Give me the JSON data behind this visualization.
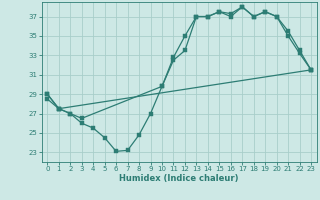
{
  "xlabel": "Humidex (Indice chaleur)",
  "background_color": "#cde8e5",
  "grid_color": "#a8ceca",
  "line_color": "#2d7d74",
  "xlim": [
    -0.5,
    23.5
  ],
  "ylim": [
    22.0,
    38.5
  ],
  "yticks": [
    23,
    25,
    27,
    29,
    31,
    33,
    35,
    37
  ],
  "xticks": [
    0,
    1,
    2,
    3,
    4,
    5,
    6,
    7,
    8,
    9,
    10,
    11,
    12,
    13,
    14,
    15,
    16,
    17,
    18,
    19,
    20,
    21,
    22,
    23
  ],
  "line1_x": [
    0,
    1,
    2,
    3,
    4,
    5,
    6,
    7,
    8,
    9,
    10,
    11,
    12,
    13,
    14,
    15,
    16,
    17,
    18,
    19,
    20,
    21,
    22,
    23
  ],
  "line1_y": [
    29.0,
    27.5,
    27.0,
    26.0,
    25.5,
    24.5,
    23.1,
    23.2,
    24.8,
    27.0,
    29.8,
    32.8,
    35.0,
    37.0,
    37.0,
    37.5,
    37.3,
    38.0,
    37.0,
    37.5,
    37.0,
    35.5,
    33.5,
    31.5
  ],
  "line2_x": [
    0,
    1,
    2,
    3,
    10,
    11,
    12,
    13,
    14,
    15,
    16,
    17,
    18,
    19,
    20,
    21,
    22,
    23
  ],
  "line2_y": [
    29.0,
    27.5,
    27.0,
    26.5,
    29.8,
    32.5,
    33.5,
    37.0,
    37.0,
    37.5,
    37.0,
    38.0,
    37.0,
    37.5,
    37.0,
    35.0,
    33.2,
    31.5
  ],
  "line3_x": [
    0,
    1,
    23
  ],
  "line3_y": [
    28.5,
    27.5,
    31.5
  ],
  "marker_size": 2.5,
  "linewidth": 0.9,
  "tick_fontsize": 5.0,
  "xlabel_fontsize": 6.0
}
